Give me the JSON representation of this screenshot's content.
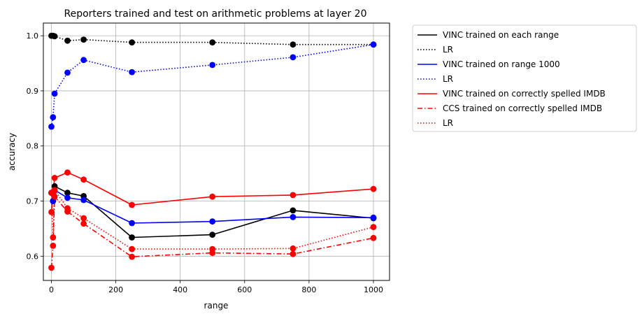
{
  "chart_data": {
    "type": "line",
    "title": "Reporters trained and test on arithmetic problems at layer 20",
    "xlabel": "range",
    "ylabel": "accuracy",
    "xlim": [
      -25,
      1050
    ],
    "ylim": [
      0.556,
      1.023
    ],
    "xticks": [
      0,
      200,
      400,
      600,
      800,
      1000
    ],
    "yticks": [
      0.6,
      0.7,
      0.8,
      0.9,
      1.0
    ],
    "xtick_labels": [
      "0",
      "200",
      "400",
      "600",
      "800",
      "1000"
    ],
    "ytick_labels": [
      "0.6",
      "0.7",
      "0.8",
      "0.9",
      "1.0"
    ],
    "grid": true,
    "legend_position": "outside-right",
    "series": [
      {
        "name": "VINC trained on each range",
        "color": "#000000",
        "style": "solid",
        "x": [
          0,
          5,
          10,
          50,
          100,
          250,
          500,
          750,
          1000
        ],
        "y": [
          0.715,
          0.7,
          0.727,
          0.715,
          0.709,
          0.634,
          0.639,
          0.683,
          0.669
        ]
      },
      {
        "name": "LR",
        "color": "#000000",
        "style": "dotted",
        "x": [
          0,
          5,
          10,
          50,
          100,
          250,
          500,
          750,
          1000
        ],
        "y": [
          1.0,
          1.0,
          0.999,
          0.991,
          0.993,
          0.988,
          0.988,
          0.984,
          0.984
        ]
      },
      {
        "name": "VINC trained on range 1000",
        "color": "#0000ff",
        "style": "solid",
        "x": [
          0,
          5,
          10,
          50,
          100,
          250,
          500,
          750,
          1000
        ],
        "y": [
          0.715,
          0.7,
          0.72,
          0.706,
          0.702,
          0.66,
          0.663,
          0.671,
          0.67
        ]
      },
      {
        "name": "LR",
        "color": "#0000ff",
        "style": "dotted",
        "x": [
          0,
          5,
          10,
          50,
          100,
          250,
          500,
          750,
          1000
        ],
        "y": [
          0.835,
          0.852,
          0.895,
          0.933,
          0.956,
          0.934,
          0.947,
          0.961,
          0.984
        ]
      },
      {
        "name": "VINC trained on correctly spelled IMDB",
        "color": "#ff0000",
        "style": "solid",
        "x": [
          0,
          5,
          10,
          50,
          100,
          250,
          500,
          750,
          1000
        ],
        "y": [
          0.68,
          0.715,
          0.742,
          0.752,
          0.739,
          0.693,
          0.708,
          0.711,
          0.722
        ]
      },
      {
        "name": "CCS trained on correctly spelled IMDB",
        "color": "#ff0000",
        "style": "dashdot",
        "x": [
          0,
          5,
          10,
          50,
          100,
          250,
          500,
          750,
          1000
        ],
        "y": [
          0.579,
          0.619,
          0.708,
          0.681,
          0.659,
          0.599,
          0.606,
          0.604,
          0.633
        ]
      },
      {
        "name": "LR",
        "color": "#ff0000",
        "style": "dotted",
        "x": [
          0,
          5,
          10,
          50,
          100,
          250,
          500,
          750,
          1000
        ],
        "y": [
          0.715,
          0.634,
          0.72,
          0.687,
          0.669,
          0.613,
          0.613,
          0.614,
          0.653
        ]
      }
    ]
  }
}
